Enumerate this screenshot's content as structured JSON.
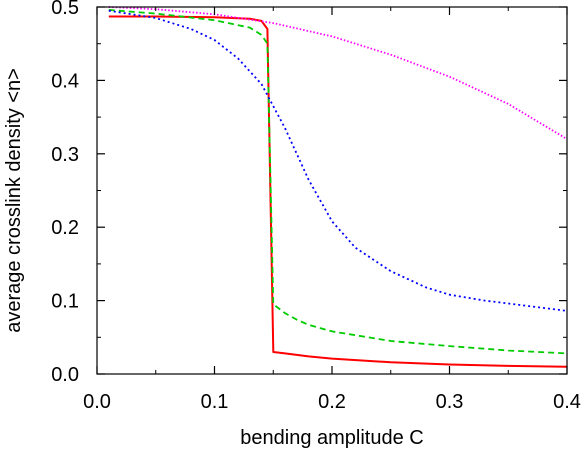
{
  "chart_data": {
    "type": "line",
    "xlabel": "bending amplitude C",
    "ylabel": "average crosslink density <n>",
    "xlim": [
      0.0,
      0.4
    ],
    "ylim": [
      0.0,
      0.5
    ],
    "x_ticks": [
      0.0,
      0.1,
      0.2,
      0.3,
      0.4
    ],
    "x_tick_labels": [
      "0.0",
      "0.1",
      "0.2",
      "0.3",
      "0.4"
    ],
    "y_ticks": [
      0.0,
      0.1,
      0.2,
      0.3,
      0.4,
      0.5
    ],
    "y_tick_labels": [
      "0.0",
      "0.1",
      "0.2",
      "0.3",
      "0.4",
      "0.5"
    ],
    "grid": false,
    "legend": "none",
    "series": [
      {
        "color": "#ff0000",
        "style": "solid",
        "x": [
          0.01,
          0.05,
          0.1,
          0.13,
          0.14,
          0.145,
          0.15,
          0.16,
          0.18,
          0.2,
          0.25,
          0.3,
          0.35,
          0.4
        ],
        "y": [
          0.487,
          0.487,
          0.486,
          0.484,
          0.481,
          0.47,
          0.03,
          0.028,
          0.024,
          0.021,
          0.016,
          0.013,
          0.011,
          0.01
        ]
      },
      {
        "color": "#00cc00",
        "style": "dashed",
        "x": [
          0.01,
          0.05,
          0.1,
          0.13,
          0.14,
          0.145,
          0.15,
          0.16,
          0.17,
          0.18,
          0.2,
          0.25,
          0.3,
          0.35,
          0.4
        ],
        "y": [
          0.496,
          0.491,
          0.482,
          0.472,
          0.462,
          0.45,
          0.095,
          0.083,
          0.074,
          0.067,
          0.058,
          0.045,
          0.038,
          0.032,
          0.028
        ]
      },
      {
        "color": "#0000ff",
        "style": "dotted",
        "x": [
          0.01,
          0.05,
          0.08,
          0.1,
          0.12,
          0.14,
          0.16,
          0.18,
          0.2,
          0.22,
          0.25,
          0.28,
          0.3,
          0.33,
          0.35,
          0.4
        ],
        "y": [
          0.495,
          0.485,
          0.47,
          0.455,
          0.43,
          0.395,
          0.335,
          0.265,
          0.208,
          0.172,
          0.14,
          0.118,
          0.108,
          0.1,
          0.096,
          0.086
        ]
      },
      {
        "color": "#ff00ff",
        "style": "dotted-fine",
        "x": [
          0.01,
          0.05,
          0.1,
          0.15,
          0.2,
          0.25,
          0.3,
          0.35,
          0.4
        ],
        "y": [
          0.5,
          0.497,
          0.49,
          0.478,
          0.46,
          0.435,
          0.405,
          0.368,
          0.32
        ]
      }
    ]
  }
}
